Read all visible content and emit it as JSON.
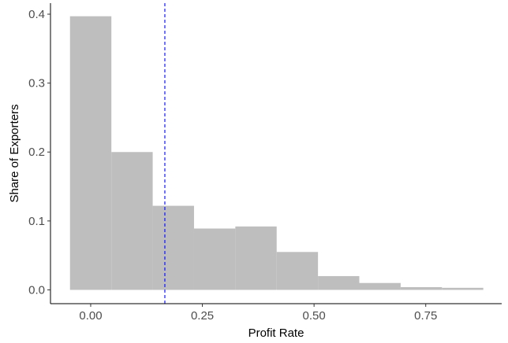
{
  "chart_data": {
    "type": "bar",
    "subtype": "histogram",
    "title": "",
    "xlabel": "Profit Rate",
    "ylabel": "Share of Exporters",
    "bin_width": 0.0925,
    "bins": [
      {
        "x0": -0.0463,
        "x1": 0.0463,
        "value": 0.397
      },
      {
        "x0": 0.0463,
        "x1": 0.1388,
        "value": 0.2
      },
      {
        "x0": 0.1388,
        "x1": 0.2313,
        "value": 0.122
      },
      {
        "x0": 0.2313,
        "x1": 0.3238,
        "value": 0.089
      },
      {
        "x0": 0.3238,
        "x1": 0.4163,
        "value": 0.092
      },
      {
        "x0": 0.4163,
        "x1": 0.5088,
        "value": 0.055
      },
      {
        "x0": 0.5088,
        "x1": 0.6013,
        "value": 0.02
      },
      {
        "x0": 0.6013,
        "x1": 0.6938,
        "value": 0.01
      },
      {
        "x0": 0.6938,
        "x1": 0.7863,
        "value": 0.004
      },
      {
        "x0": 0.7863,
        "x1": 0.8788,
        "value": 0.003
      }
    ],
    "reference_line": {
      "x": 0.166,
      "style": "dashed",
      "color": "#0000ff"
    },
    "xlim": [
      -0.09,
      0.92
    ],
    "ylim": [
      -0.02,
      0.416
    ],
    "xticks": [
      0.0,
      0.25,
      0.5,
      0.75
    ],
    "xtick_labels": [
      "0.00",
      "0.25",
      "0.50",
      "0.75"
    ],
    "yticks": [
      0.0,
      0.1,
      0.2,
      0.3,
      0.4
    ],
    "ytick_labels": [
      "0.0",
      "0.1",
      "0.2",
      "0.3",
      "0.4"
    ],
    "grid": false,
    "legend": "none",
    "colors": {
      "bar": "#bebebe",
      "axis": "#000000",
      "tick_text": "#4d4d4d"
    }
  }
}
